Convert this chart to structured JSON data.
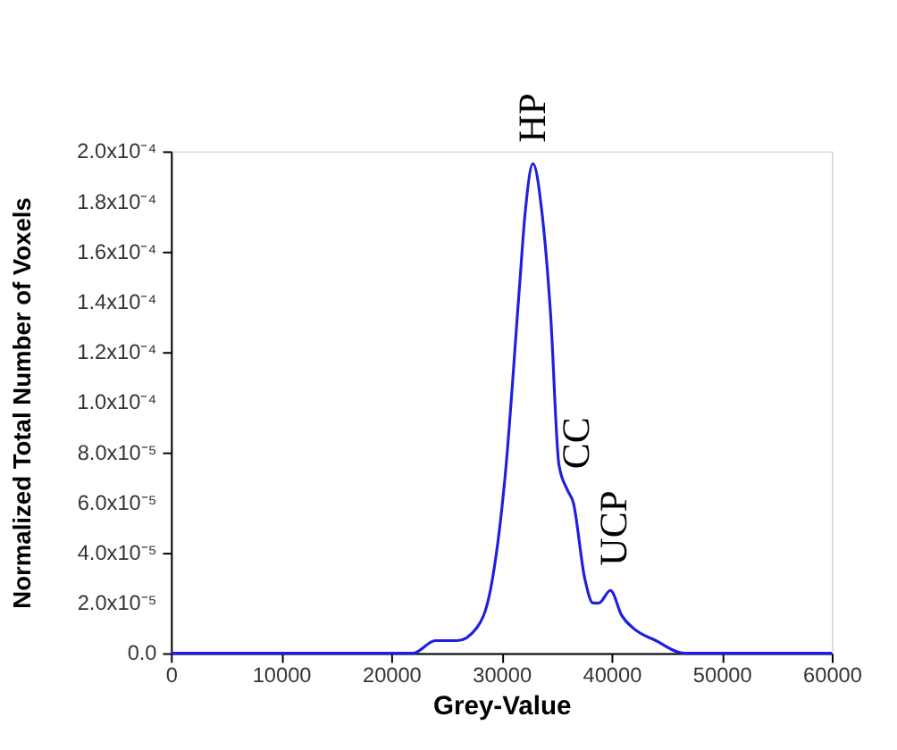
{
  "chart_data": {
    "type": "line",
    "xlabel": "Grey-Value",
    "ylabel": "Normalized Total Number of Voxels",
    "x": [
      0,
      10000,
      20000,
      22000,
      24000,
      26000,
      27750,
      29000,
      30330,
      31630,
      32150,
      32870,
      33700,
      34470,
      35230,
      36000,
      36530,
      37560,
      38330,
      38850,
      39900,
      40930,
      41960,
      44030,
      46600,
      50000,
      60000
    ],
    "series": [
      {
        "color": "#1f1fe0",
        "values": [
          0,
          0,
          0,
          0,
          5e-06,
          5e-06,
          1e-05,
          2.5e-05,
          7e-05,
          0.000145,
          0.000175,
          0.000195,
          0.000175,
          0.000135,
          7.5e-05,
          6.5e-05,
          6e-05,
          3e-05,
          2e-05,
          2e-05,
          2.5e-05,
          1.5e-05,
          1e-05,
          5e-06,
          0,
          0,
          0
        ]
      }
    ],
    "xlim": [
      0,
      60000
    ],
    "xticks": [
      0,
      10000,
      20000,
      30000,
      40000,
      50000,
      60000
    ],
    "ylim": [
      0,
      0.0002
    ],
    "yticks": [
      {
        "value": 0,
        "label": "0.0"
      },
      {
        "value": 2e-05,
        "label": "2.0x10⁻⁵"
      },
      {
        "value": 4e-05,
        "label": "4.0x10⁻⁵"
      },
      {
        "value": 6e-05,
        "label": "6.0x10⁻⁵"
      },
      {
        "value": 8e-05,
        "label": "8.0x10⁻⁵"
      },
      {
        "value": 0.0001,
        "label": "1.0x10⁻⁴"
      },
      {
        "value": 0.00012,
        "label": "1.2x10⁻⁴"
      },
      {
        "value": 0.00014,
        "label": "1.4x10⁻⁴"
      },
      {
        "value": 0.00016,
        "label": "1.6x10⁻⁴"
      },
      {
        "value": 0.00018,
        "label": "1.8x10⁻⁴"
      },
      {
        "value": 0.0002,
        "label": "2.0x10⁻⁴"
      }
    ],
    "annotations": [
      {
        "text": "HP",
        "x": 32870,
        "y": 0.000195
      },
      {
        "text": "CC",
        "x": 36000,
        "y": 6.5e-05
      },
      {
        "text": "UCP",
        "x": 39900,
        "y": 2.5e-05
      }
    ],
    "grid": false,
    "marker": "none",
    "line_style": "solid"
  }
}
